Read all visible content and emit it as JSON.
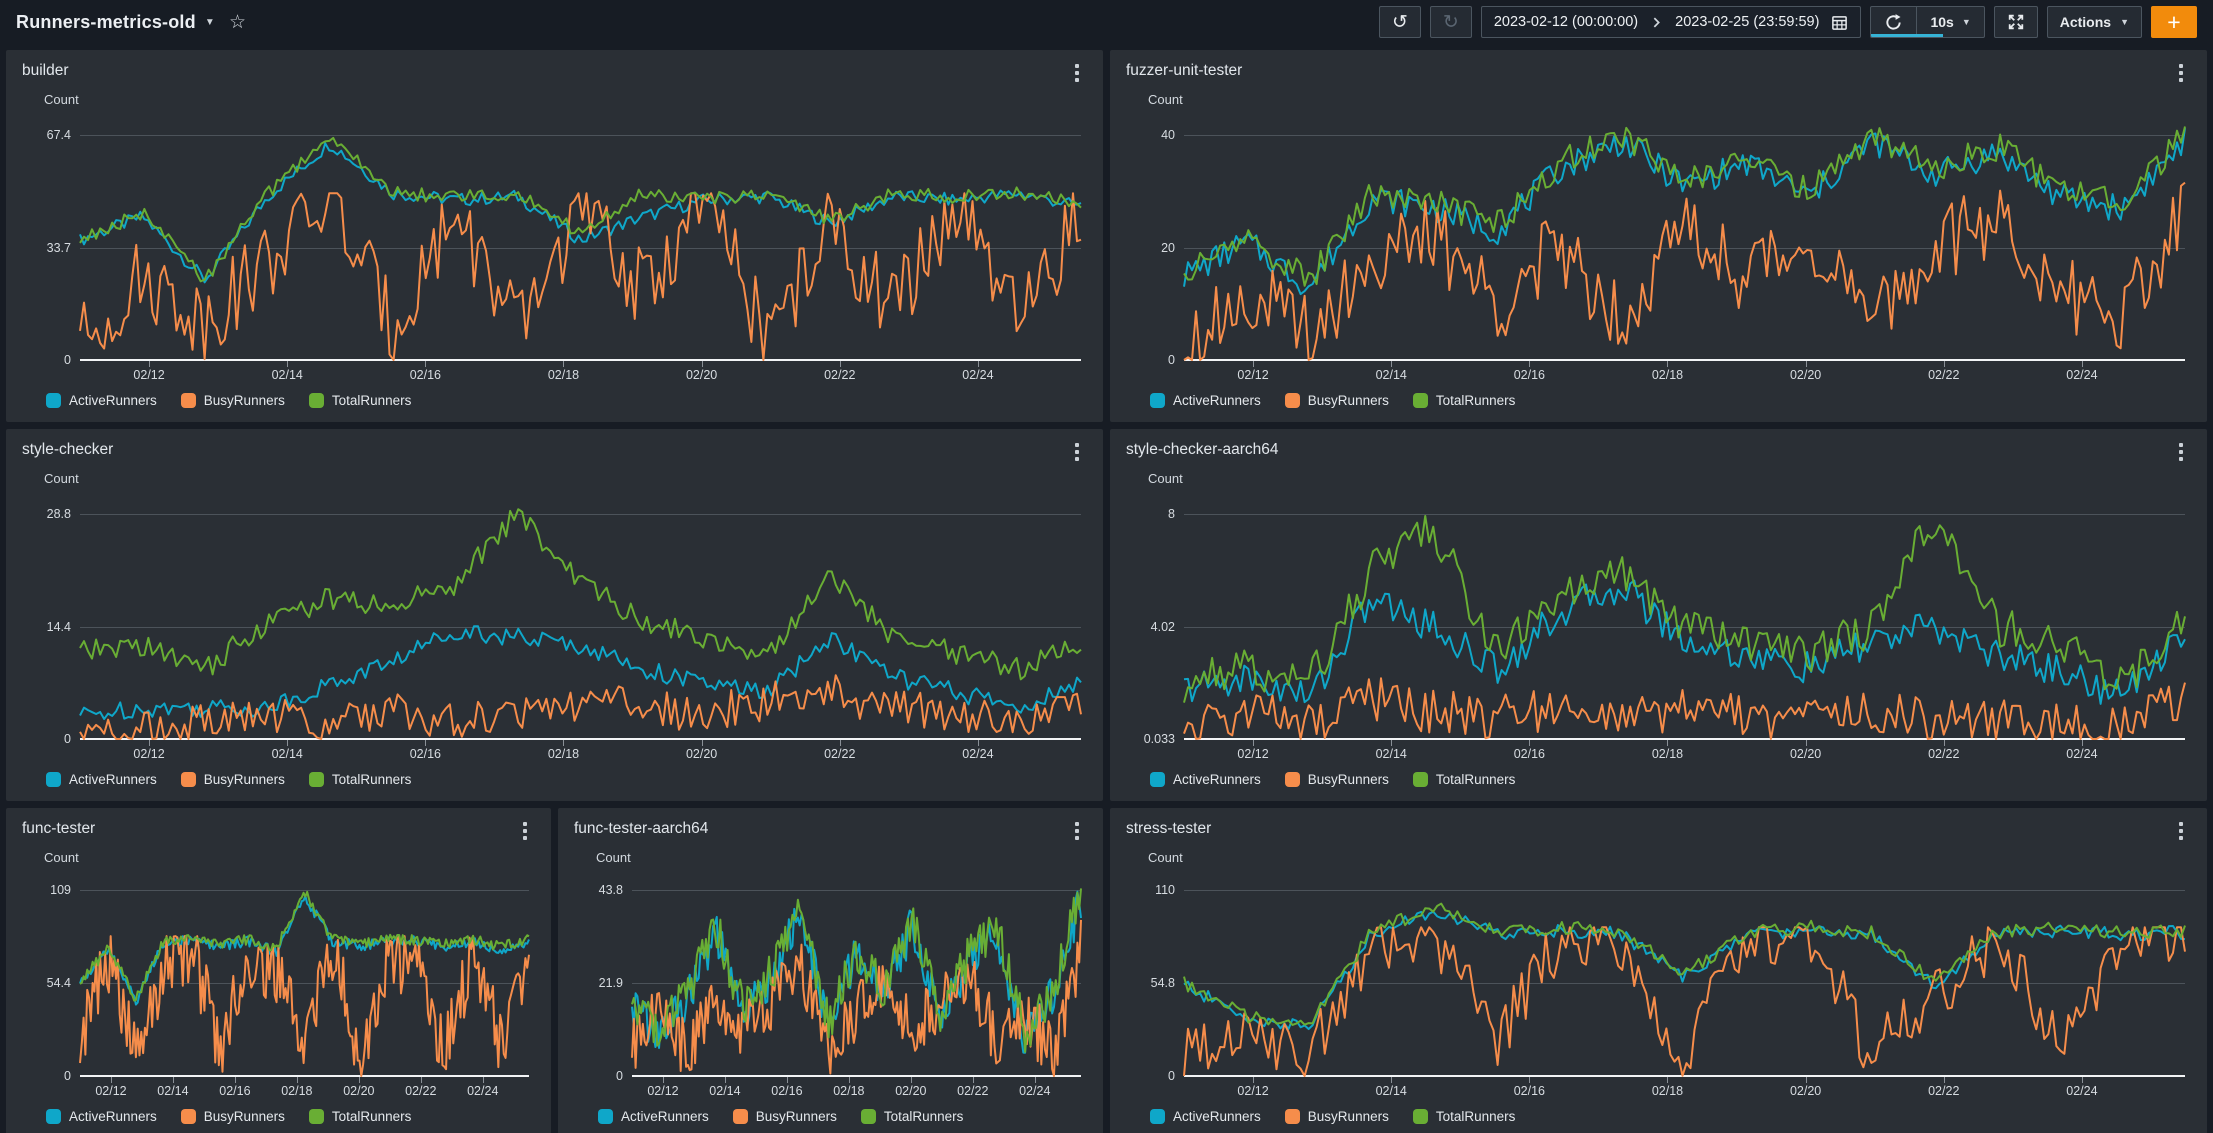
{
  "header": {
    "title": "Runners-metrics-old",
    "title_caret": "▼",
    "star_icon": "☆"
  },
  "toolbar": {
    "undo_icon": "↺",
    "redo_icon": "↻",
    "date_start": "2023-02-12 (00:00:00)",
    "date_end": "2023-02-25 (23:59:59)",
    "refresh_interval": "10s",
    "actions_label": "Actions",
    "add_button_label": "+",
    "accent_color": "#f28b0c",
    "refresh_progress_color": "#36b3d6",
    "refresh_progress_pct": 64
  },
  "legend": {
    "items": [
      {
        "label": "ActiveRunners",
        "color": "#0fa7c9"
      },
      {
        "label": "BusyRunners",
        "color": "#f68d4b"
      },
      {
        "label": "TotalRunners",
        "color": "#69ae34"
      }
    ]
  },
  "xaxis": {
    "tick_labels": [
      "02/12",
      "02/14",
      "02/16",
      "02/18",
      "02/20",
      "02/22",
      "02/24"
    ],
    "tick_positions": [
      0.069,
      0.207,
      0.345,
      0.483,
      0.621,
      0.759,
      0.897
    ],
    "x_range": [
      "02/11",
      "02/25"
    ]
  },
  "panels": [
    {
      "title": "builder",
      "ylabel": "Count",
      "yticks": [
        "67.4",
        "33.7",
        "0"
      ],
      "chart_data": {
        "type": "line",
        "ylim": [
          0,
          67.4
        ],
        "legend_position": "bottom",
        "series": [
          {
            "name": "ActiveRunners",
            "values": [
              36,
              43,
              24,
              49,
              65,
              50,
              48,
              49,
              36,
              43,
              48,
              49,
              41,
              49,
              48,
              50,
              46
            ],
            "noise": 2
          },
          {
            "name": "BusyRunners",
            "values": [
              5,
              25,
              12,
              30,
              48,
              10,
              45,
              8,
              46,
              20,
              48,
              6,
              40,
              15,
              46,
              10,
              44
            ],
            "noise": 12,
            "min": 0,
            "max": 50
          },
          {
            "name": "TotalRunners",
            "values": [
              36,
              44,
              24,
              50,
              67,
              50,
              49,
              50,
              38,
              50,
              48,
              50,
              42,
              50,
              49,
              50,
              47
            ],
            "noise": 2
          }
        ]
      }
    },
    {
      "title": "fuzzer-unit-tester",
      "ylabel": "Count",
      "yticks": [
        "40",
        "20",
        "0"
      ],
      "chart_data": {
        "type": "line",
        "ylim": [
          0,
          40
        ],
        "legend_position": "bottom",
        "series": [
          {
            "name": "ActiveRunners",
            "values": [
              15,
              21,
              13,
              29,
              27,
              23,
              34,
              39,
              31,
              35,
              29,
              39,
              33,
              37,
              29,
              27,
              39
            ],
            "noise": 2.5
          },
          {
            "name": "BusyRunners",
            "values": [
              3,
              12,
              5,
              18,
              22,
              10,
              20,
              8,
              24,
              15,
              22,
              6,
              20,
              25,
              12,
              8,
              26
            ],
            "noise": 7,
            "min": 0,
            "max": 38
          },
          {
            "name": "TotalRunners",
            "values": [
              15,
              22,
              14,
              30,
              28,
              24,
              35,
              40,
              32,
              36,
              30,
              40,
              34,
              38,
              30,
              28,
              40
            ],
            "noise": 2.5
          }
        ]
      }
    },
    {
      "title": "style-checker",
      "ylabel": "Count",
      "yticks": [
        "28.8",
        "14.4",
        "0"
      ],
      "chart_data": {
        "type": "line",
        "ylim": [
          0,
          28.8
        ],
        "legend_position": "bottom",
        "series": [
          {
            "name": "ActiveRunners",
            "values": [
              3,
              4,
              4,
              4,
              7,
              10,
              14,
              13,
              12,
              9,
              7,
              6,
              13,
              8,
              6,
              4,
              7
            ],
            "noise": 1.2,
            "min": 0.2
          },
          {
            "name": "BusyRunners",
            "values": [
              0.5,
              1,
              2,
              3,
              2,
              4,
              2,
              3,
              5,
              4,
              3,
              5,
              6,
              4,
              3,
              2,
              4
            ],
            "noise": 2.5,
            "min": 0,
            "max": 11
          },
          {
            "name": "TotalRunners",
            "values": [
              11,
              12,
              9,
              15,
              18,
              17,
              20,
              29,
              20,
              15,
              13,
              11,
              21,
              13,
              11,
              9,
              12
            ],
            "noise": 1.5,
            "min": 1
          }
        ]
      }
    },
    {
      "title": "style-checker-aarch64",
      "ylabel": "Count",
      "yticks": [
        "8",
        "4.02",
        "0.033"
      ],
      "chart_data": {
        "type": "line",
        "ylim": [
          0.033,
          8
        ],
        "legend_position": "bottom",
        "series": [
          {
            "name": "ActiveRunners",
            "values": [
              1.8,
              2.2,
              1.5,
              5,
              4,
              2.5,
              4.5,
              5.5,
              3.5,
              3,
              2.5,
              3.5,
              4,
              3,
              2.5,
              1.5,
              4
            ],
            "noise": 0.6,
            "min": 0.1
          },
          {
            "name": "BusyRunners",
            "values": [
              0.3,
              1,
              0.5,
              1.5,
              1,
              0.8,
              1.2,
              0.6,
              1,
              0.8,
              0.6,
              1,
              0.8,
              0.7,
              0.5,
              0.6,
              1.5
            ],
            "noise": 0.8,
            "min": 0.033,
            "max": 3.5
          },
          {
            "name": "TotalRunners",
            "values": [
              2,
              2.5,
              2,
              6,
              7.5,
              3,
              5,
              6,
              4,
              3.5,
              3,
              4,
              8,
              4,
              3.5,
              2,
              4.5
            ],
            "noise": 0.7,
            "min": 0.5
          }
        ]
      }
    },
    {
      "title": "func-tester",
      "ylabel": "Count",
      "yticks": [
        "109",
        "54.4",
        "0"
      ],
      "chart_data": {
        "type": "line",
        "ylim": [
          0,
          109
        ],
        "legend_position": "bottom",
        "series": [
          {
            "name": "ActiveRunners",
            "values": [
              54,
              74,
              44,
              79,
              79,
              76,
              79,
              73,
              105,
              79,
              76,
              79,
              79,
              76,
              79,
              74,
              79
            ],
            "noise": 3
          },
          {
            "name": "BusyRunners",
            "values": [
              20,
              70,
              10,
              65,
              75,
              15,
              70,
              60,
              20,
              75,
              8,
              70,
              65,
              12,
              70,
              20,
              75
            ],
            "noise": 20,
            "min": 0,
            "max": 82
          },
          {
            "name": "TotalRunners",
            "values": [
              55,
              75,
              45,
              80,
              80,
              78,
              80,
              75,
              108,
              80,
              78,
              80,
              80,
              78,
              80,
              76,
              80
            ],
            "noise": 3
          }
        ]
      }
    },
    {
      "title": "func-tester-aarch64",
      "ylabel": "Count",
      "yticks": [
        "43.8",
        "21.9",
        "0"
      ],
      "chart_data": {
        "type": "line",
        "ylim": [
          0,
          43.8
        ],
        "legend_position": "bottom",
        "series": [
          {
            "name": "ActiveRunners",
            "values": [
              17,
              9,
              19,
              33,
              14,
              24,
              38,
              11,
              29,
              19,
              36,
              14,
              27,
              33,
              9,
              19,
              42
            ],
            "noise": 5,
            "min": 0.5
          },
          {
            "name": "BusyRunners",
            "values": [
              8,
              15,
              5,
              20,
              10,
              18,
              25,
              6,
              15,
              22,
              10,
              18,
              25,
              8,
              15,
              5,
              30
            ],
            "noise": 7,
            "min": 0,
            "max": 38
          },
          {
            "name": "TotalRunners",
            "values": [
              18,
              10,
              20,
              35,
              15,
              25,
              40,
              12,
              30,
              20,
              38,
              15,
              28,
              35,
              10,
              20,
              43
            ],
            "noise": 5,
            "min": 1
          }
        ]
      }
    },
    {
      "title": "stress-tester",
      "ylabel": "Count",
      "yticks": [
        "110",
        "54.8",
        "0"
      ],
      "chart_data": {
        "type": "line",
        "ylim": [
          0,
          110
        ],
        "legend_position": "bottom",
        "series": [
          {
            "name": "ActiveRunners",
            "values": [
              54,
              34,
              29,
              84,
              98,
              84,
              86,
              84,
              58,
              84,
              86,
              84,
              54,
              84,
              86,
              84,
              85
            ],
            "noise": 4
          },
          {
            "name": "BusyRunners",
            "values": [
              15,
              25,
              10,
              80,
              85,
              20,
              80,
              75,
              15,
              80,
              85,
              12,
              50,
              80,
              20,
              80,
              83
            ],
            "noise": 18,
            "min": 0,
            "max": 88
          },
          {
            "name": "TotalRunners",
            "values": [
              55,
              35,
              30,
              85,
              100,
              85,
              88,
              85,
              60,
              85,
              88,
              85,
              55,
              85,
              88,
              85,
              86
            ],
            "noise": 4
          }
        ]
      }
    }
  ]
}
